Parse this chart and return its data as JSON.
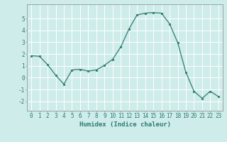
{
  "x": [
    0,
    1,
    2,
    3,
    4,
    5,
    6,
    7,
    8,
    9,
    10,
    11,
    12,
    13,
    14,
    15,
    16,
    17,
    18,
    19,
    20,
    21,
    22,
    23
  ],
  "y": [
    1.85,
    1.8,
    1.1,
    0.2,
    -0.55,
    0.65,
    0.7,
    0.55,
    0.65,
    1.05,
    1.55,
    2.6,
    4.1,
    5.3,
    5.45,
    5.5,
    5.45,
    4.55,
    2.95,
    0.45,
    -1.15,
    -1.75,
    -1.15,
    -1.6
  ],
  "line_color": "#2e7d6e",
  "marker": "o",
  "marker_size": 1.8,
  "linewidth": 0.9,
  "bg_color": "#ceecea",
  "grid_color": "#ffffff",
  "xlabel": "Humidex (Indice chaleur)",
  "xlabel_fontsize": 6.5,
  "xlim": [
    -0.5,
    23.5
  ],
  "ylim": [
    -2.8,
    6.2
  ],
  "yticks": [
    -2,
    -1,
    0,
    1,
    2,
    3,
    4,
    5
  ],
  "xticks": [
    0,
    1,
    2,
    3,
    4,
    5,
    6,
    7,
    8,
    9,
    10,
    11,
    12,
    13,
    14,
    15,
    16,
    17,
    18,
    19,
    20,
    21,
    22,
    23
  ],
  "tick_fontsize": 5.5,
  "tick_color": "#2e7d6e"
}
